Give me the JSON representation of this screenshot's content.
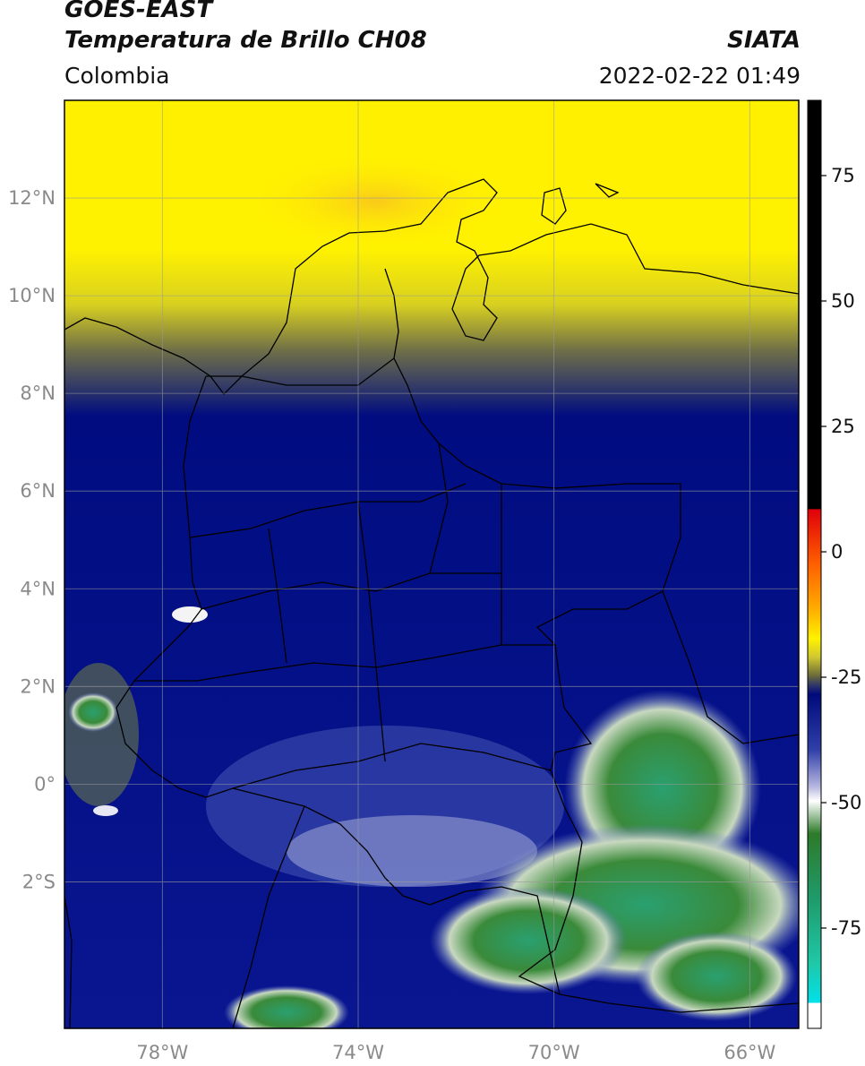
{
  "header": {
    "satellite": "GOES-EAST",
    "product": "Temperatura de Brillo CH08",
    "agency": "SIATA",
    "region": "Colombia",
    "datetime": "2022-02-22 01:49"
  },
  "map": {
    "lon_range": [
      -80,
      -65
    ],
    "lat_range": [
      -5,
      14
    ],
    "lat_ticks": [
      {
        "value": 12,
        "label": "12°N"
      },
      {
        "value": 10,
        "label": "10°N"
      },
      {
        "value": 8,
        "label": "8°N"
      },
      {
        "value": 6,
        "label": "6°N"
      },
      {
        "value": 4,
        "label": "4°N"
      },
      {
        "value": 2,
        "label": "2°N"
      },
      {
        "value": 0,
        "label": "0°"
      },
      {
        "value": -2,
        "label": "2°S"
      }
    ],
    "lon_ticks": [
      {
        "value": -78,
        "label": "78°W"
      },
      {
        "value": -74,
        "label": "74°W"
      },
      {
        "value": -70,
        "label": "70°W"
      },
      {
        "value": -66,
        "label": "66°W"
      }
    ],
    "gridlines": true
  },
  "colorbar": {
    "range": [
      -95,
      90
    ],
    "ticks": [
      {
        "value": 75,
        "label": "75"
      },
      {
        "value": 50,
        "label": "50"
      },
      {
        "value": 25,
        "label": "25"
      },
      {
        "value": 0,
        "label": "0"
      },
      {
        "value": -25,
        "label": "-25"
      },
      {
        "value": -50,
        "label": "-50"
      },
      {
        "value": -75,
        "label": "-75"
      }
    ],
    "colors": {
      "black": "#000000",
      "red": "#e0000a",
      "orange": "#f58a00",
      "yellow": "#fff200",
      "olive": "#6b6b3a",
      "navy": "#000a7a",
      "blue": "#3040a8",
      "lavender": "#b8b8e0",
      "white": "#ffffff",
      "green": "#2e7a2a",
      "teal": "#1fc8a8",
      "cyan": "#00e0e8"
    }
  }
}
